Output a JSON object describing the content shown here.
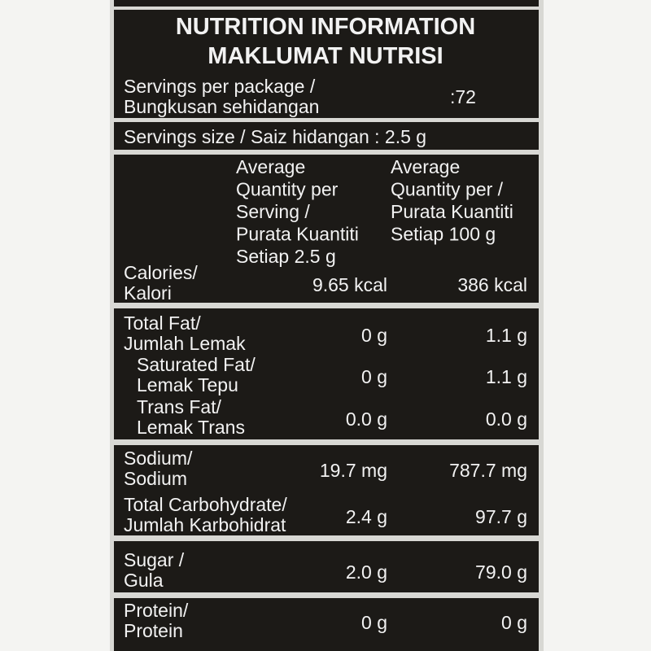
{
  "header": {
    "title": [
      "NUTRITION INFORMATION",
      "MAKLUMAT NUTRISI"
    ]
  },
  "servings": {
    "label": [
      "Servings per package /",
      "Bungkusan sehidangan"
    ],
    "value": ":72"
  },
  "serving_size": "Servings size / Saiz hidangan : 2.5 g",
  "columns": [
    [
      "Average",
      "Quantity per",
      "Serving /",
      "Purata Kuantiti",
      "Setiap 2.5 g"
    ],
    [
      "Average",
      "Quantity per /",
      "Purata Kuantiti",
      "Setiap 100 g"
    ]
  ],
  "rows": [
    {
      "label": [
        "Calories/",
        "Kalori"
      ],
      "per_serving": "9.65 kcal",
      "per_100g": "386 kcal"
    },
    {
      "label": [
        "Total Fat/",
        "Jumlah Lemak"
      ],
      "per_serving": "0 g",
      "per_100g": "1.1 g"
    },
    {
      "label": [
        "Saturated Fat/",
        "Lemak Tepu"
      ],
      "per_serving": "0 g",
      "per_100g": "1.1 g"
    },
    {
      "label": [
        "Trans Fat/",
        "Lemak Trans"
      ],
      "per_serving": "0.0 g",
      "per_100g": "0.0 g"
    },
    {
      "label": [
        "Sodium/",
        "Sodium"
      ],
      "per_serving": "19.7 mg",
      "per_100g": "787.7 mg"
    },
    {
      "label": [
        "Total Carbohydrate/",
        "Jumlah Karbohidrat"
      ],
      "per_serving": "2.4 g",
      "per_100g": "97.7 g"
    },
    {
      "label": [
        "Sugar /",
        "Gula"
      ],
      "per_serving": "2.0 g",
      "per_100g": "79.0 g"
    },
    {
      "label": [
        "Protein/",
        "Protein"
      ],
      "per_serving": "0 g",
      "per_100g": "0 g"
    }
  ]
}
